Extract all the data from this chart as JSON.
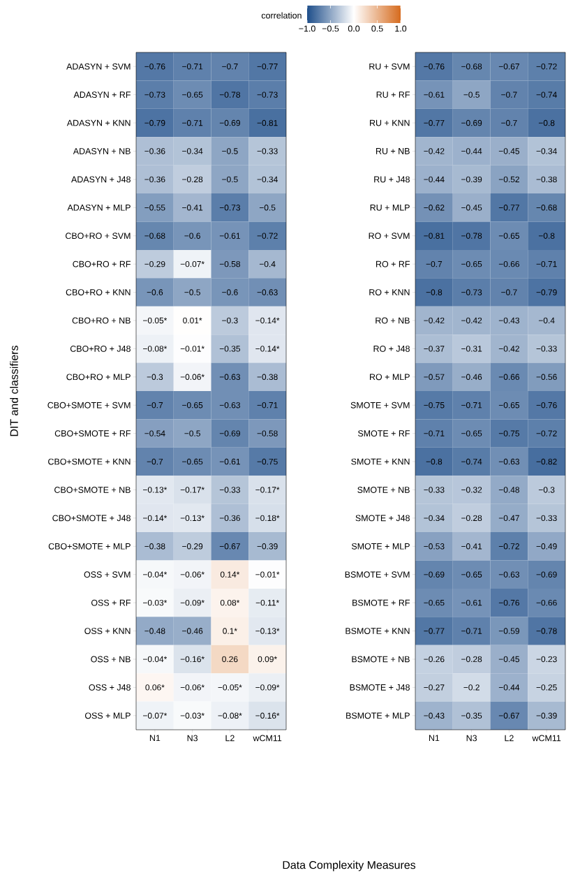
{
  "chart_data": [
    {
      "type": "heatmap",
      "xlabel": "Data Complexity Measures",
      "ylabel": "DIT and classifiers",
      "clabel": "correlation",
      "clim": [
        -1,
        1
      ],
      "cticks": [
        {
          "value": -1,
          "label": "−1.0"
        },
        {
          "value": -0.5,
          "label": "−0.5"
        },
        {
          "value": 0,
          "label": "0.0"
        },
        {
          "value": 0.5,
          "label": "0.5"
        },
        {
          "value": 1,
          "label": "1.0"
        }
      ],
      "data_labels": true,
      "categories": [
        "N1",
        "N3",
        "L2",
        "wCM11"
      ],
      "y_categories": [
        "ADASYN + SVM",
        "ADASYN + RF",
        "ADASYN + KNN",
        "ADASYN + NB",
        "ADASYN + J48",
        "ADASYN + MLP",
        "CBO+RO + SVM",
        "CBO+RO + RF",
        "CBO+RO + KNN",
        "CBO+RO + NB",
        "CBO+RO + J48",
        "CBO+RO + MLP",
        "CBO+SMOTE + SVM",
        "CBO+SMOTE + RF",
        "CBO+SMOTE + KNN",
        "CBO+SMOTE + NB",
        "CBO+SMOTE + J48",
        "CBO+SMOTE + MLP",
        "OSS + SVM",
        "OSS + RF",
        "OSS + KNN",
        "OSS + NB",
        "OSS + J48",
        "OSS + MLP"
      ],
      "cells": [
        [
          -0.76,
          -0.71,
          -0.7,
          -0.77
        ],
        [
          -0.73,
          -0.65,
          -0.78,
          -0.73
        ],
        [
          -0.79,
          -0.71,
          -0.69,
          -0.81
        ],
        [
          -0.36,
          -0.34,
          -0.5,
          -0.33
        ],
        [
          -0.36,
          -0.28,
          -0.5,
          -0.34
        ],
        [
          -0.55,
          -0.41,
          -0.73,
          -0.5
        ],
        [
          -0.68,
          -0.6,
          -0.61,
          -0.72
        ],
        [
          -0.29,
          -0.07,
          -0.58,
          -0.4
        ],
        [
          -0.6,
          -0.5,
          -0.6,
          -0.63
        ],
        [
          -0.05,
          0.01,
          -0.3,
          -0.14
        ],
        [
          -0.08,
          -0.01,
          -0.35,
          -0.14
        ],
        [
          -0.3,
          -0.06,
          -0.63,
          -0.38
        ],
        [
          -0.7,
          -0.65,
          -0.63,
          -0.71
        ],
        [
          -0.54,
          -0.5,
          -0.69,
          -0.58
        ],
        [
          -0.7,
          -0.65,
          -0.61,
          -0.75
        ],
        [
          -0.13,
          -0.17,
          -0.33,
          -0.17
        ],
        [
          -0.14,
          -0.13,
          -0.36,
          -0.18
        ],
        [
          -0.38,
          -0.29,
          -0.67,
          -0.39
        ],
        [
          -0.04,
          -0.06,
          0.14,
          -0.01
        ],
        [
          -0.03,
          -0.09,
          0.08,
          -0.11
        ],
        [
          -0.48,
          -0.46,
          0.1,
          -0.13
        ],
        [
          -0.04,
          -0.16,
          0.26,
          0.09
        ],
        [
          0.06,
          -0.06,
          -0.05,
          -0.09
        ],
        [
          -0.07,
          -0.03,
          -0.08,
          -0.16
        ]
      ],
      "cell_labels": [
        [
          "−0.76",
          "−0.71",
          "−0.7",
          "−0.77"
        ],
        [
          "−0.73",
          "−0.65",
          "−0.78",
          "−0.73"
        ],
        [
          "−0.79",
          "−0.71",
          "−0.69",
          "−0.81"
        ],
        [
          "−0.36",
          "−0.34",
          "−0.5",
          "−0.33"
        ],
        [
          "−0.36",
          "−0.28",
          "−0.5",
          "−0.34"
        ],
        [
          "−0.55",
          "−0.41",
          "−0.73",
          "−0.5"
        ],
        [
          "−0.68",
          "−0.6",
          "−0.61",
          "−0.72"
        ],
        [
          "−0.29",
          "−0.07*",
          "−0.58",
          "−0.4"
        ],
        [
          "−0.6",
          "−0.5",
          "−0.6",
          "−0.63"
        ],
        [
          "−0.05*",
          "0.01*",
          "−0.3",
          "−0.14*"
        ],
        [
          "−0.08*",
          "−0.01*",
          "−0.35",
          "−0.14*"
        ],
        [
          "−0.3",
          "−0.06*",
          "−0.63",
          "−0.38"
        ],
        [
          "−0.7",
          "−0.65",
          "−0.63",
          "−0.71"
        ],
        [
          "−0.54",
          "−0.5",
          "−0.69",
          "−0.58"
        ],
        [
          "−0.7",
          "−0.65",
          "−0.61",
          "−0.75"
        ],
        [
          "−0.13*",
          "−0.17*",
          "−0.33",
          "−0.17*"
        ],
        [
          "−0.14*",
          "−0.13*",
          "−0.36",
          "−0.18*"
        ],
        [
          "−0.38",
          "−0.29",
          "−0.67",
          "−0.39"
        ],
        [
          "−0.04*",
          "−0.06*",
          "0.14*",
          "−0.01*"
        ],
        [
          "−0.03*",
          "−0.09*",
          "0.08*",
          "−0.11*"
        ],
        [
          "−0.48",
          "−0.46",
          "0.1*",
          "−0.13*"
        ],
        [
          "−0.04*",
          "−0.16*",
          "0.26",
          "0.09*"
        ],
        [
          "0.06*",
          "−0.06*",
          "−0.05*",
          "−0.09*"
        ],
        [
          "−0.07*",
          "−0.03*",
          "−0.08*",
          "−0.16*"
        ]
      ]
    },
    {
      "type": "heatmap",
      "data_labels": true,
      "categories": [
        "N1",
        "N3",
        "L2",
        "wCM11"
      ],
      "y_categories": [
        "RU + SVM",
        "RU + RF",
        "RU + KNN",
        "RU + NB",
        "RU + J48",
        "RU + MLP",
        "RO + SVM",
        "RO + RF",
        "RO + KNN",
        "RO + NB",
        "RO + J48",
        "RO + MLP",
        "SMOTE + SVM",
        "SMOTE + RF",
        "SMOTE + KNN",
        "SMOTE + NB",
        "SMOTE + J48",
        "SMOTE + MLP",
        "BSMOTE + SVM",
        "BSMOTE + RF",
        "BSMOTE + KNN",
        "BSMOTE + NB",
        "BSMOTE + J48",
        "BSMOTE + MLP"
      ],
      "cells": [
        [
          -0.76,
          -0.68,
          -0.67,
          -0.72
        ],
        [
          -0.61,
          -0.5,
          -0.7,
          -0.74
        ],
        [
          -0.77,
          -0.69,
          -0.7,
          -0.8
        ],
        [
          -0.42,
          -0.44,
          -0.45,
          -0.34
        ],
        [
          -0.44,
          -0.39,
          -0.52,
          -0.38
        ],
        [
          -0.62,
          -0.45,
          -0.77,
          -0.68
        ],
        [
          -0.81,
          -0.78,
          -0.65,
          -0.8
        ],
        [
          -0.7,
          -0.65,
          -0.66,
          -0.71
        ],
        [
          -0.8,
          -0.73,
          -0.7,
          -0.79
        ],
        [
          -0.42,
          -0.42,
          -0.43,
          -0.4
        ],
        [
          -0.37,
          -0.31,
          -0.42,
          -0.33
        ],
        [
          -0.57,
          -0.46,
          -0.66,
          -0.56
        ],
        [
          -0.75,
          -0.71,
          -0.65,
          -0.76
        ],
        [
          -0.71,
          -0.65,
          -0.75,
          -0.72
        ],
        [
          -0.8,
          -0.74,
          -0.63,
          -0.82
        ],
        [
          -0.33,
          -0.32,
          -0.48,
          -0.3
        ],
        [
          -0.34,
          -0.28,
          -0.47,
          -0.33
        ],
        [
          -0.53,
          -0.41,
          -0.72,
          -0.49
        ],
        [
          -0.69,
          -0.65,
          -0.63,
          -0.69
        ],
        [
          -0.65,
          -0.61,
          -0.76,
          -0.66
        ],
        [
          -0.77,
          -0.71,
          -0.59,
          -0.78
        ],
        [
          -0.26,
          -0.28,
          -0.45,
          -0.23
        ],
        [
          -0.27,
          -0.2,
          -0.44,
          -0.25
        ],
        [
          -0.43,
          -0.35,
          -0.67,
          -0.39
        ]
      ]
    }
  ]
}
